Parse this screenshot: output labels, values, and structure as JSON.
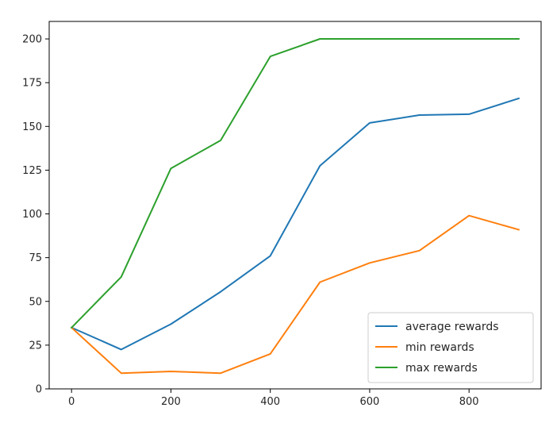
{
  "chart_data": {
    "type": "line",
    "title": "",
    "xlabel": "",
    "ylabel": "",
    "xlim": [
      -45,
      945
    ],
    "ylim": [
      0,
      210
    ],
    "xticks": [
      0,
      200,
      400,
      600,
      800
    ],
    "yticks": [
      0,
      25,
      50,
      75,
      100,
      125,
      150,
      175,
      200
    ],
    "grid": false,
    "legend": "lower-right",
    "x": [
      0,
      100,
      200,
      300,
      400,
      500,
      600,
      700,
      800,
      900
    ],
    "series": [
      {
        "name": "average rewards",
        "color": "#1f77b4",
        "values": [
          35,
          22.5,
          37,
          55.5,
          76,
          127.5,
          152,
          156.5,
          157,
          166
        ]
      },
      {
        "name": "min rewards",
        "color": "#ff7f0e",
        "values": [
          35,
          9,
          10,
          9,
          20,
          61,
          72,
          79,
          99,
          91
        ]
      },
      {
        "name": "max rewards",
        "color": "#2ca02c",
        "values": [
          35,
          64,
          126,
          142,
          190,
          200,
          200,
          200,
          200,
          200
        ]
      }
    ]
  }
}
